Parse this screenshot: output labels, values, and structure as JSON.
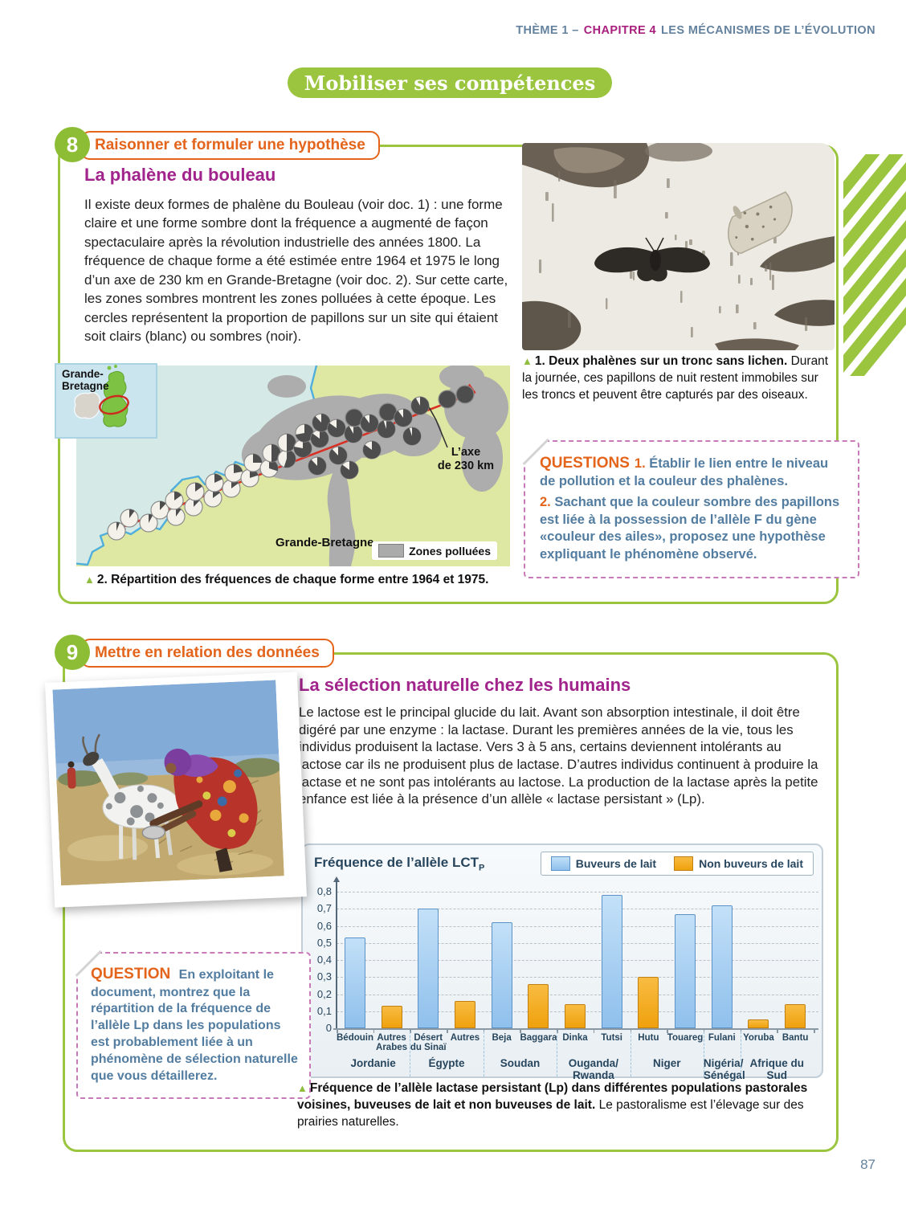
{
  "page": {
    "header": {
      "prefix": "THÈME 1 –",
      "chapter": "CHAPITRE 4",
      "suffix": "LES MÉCANISMES DE L’ÉVOLUTION"
    },
    "banner": "Mobiliser ses compétences",
    "page_number": "87"
  },
  "section8": {
    "number": "8",
    "competence": "Raisonner et formuler une hypothèse",
    "title": "La phalène du bouleau",
    "body": "Il existe deux formes de phalène du Bouleau (voir doc. 1) : une forme claire et une forme sombre dont la fréquence a augmenté de façon spectaculaire après la révolution industrielle des années 1800. La fréquence de chaque forme a été estimée entre 1964 et 1975 le long d’un axe de 230 km en Grande-Bretagne (voir doc. 2). Sur cette carte, les zones sombres montrent les zones polluées à cette époque. Les cercles représentent la proportion de papillons sur un site qui étaient soit clairs (blanc) ou sombres (noir).",
    "photo1_marker": "▲",
    "photo1_caption_bold": "1. Deux phalènes sur un tronc sans lichen.",
    "photo1_caption_rest": " Durant la journée, ces papillons de nuit restent immobiles sur les troncs et peuvent être capturés par des oiseaux.",
    "map": {
      "inset_label": "Grande-\nBretagne",
      "axis_label": "L’axe\nde 230 km",
      "country_label": "Grande-Bretagne",
      "legend": "Zones polluées",
      "markers": [
        [
          50,
          206,
          0.06
        ],
        [
          66,
          190,
          0.1
        ],
        [
          90,
          196,
          0.08
        ],
        [
          104,
          180,
          0.12
        ],
        [
          124,
          188,
          0.1
        ],
        [
          122,
          168,
          0.15
        ],
        [
          146,
          176,
          0.12
        ],
        [
          148,
          157,
          0.15
        ],
        [
          170,
          165,
          0.15
        ],
        [
          172,
          146,
          0.18
        ],
        [
          193,
          153,
          0.15
        ],
        [
          196,
          134,
          0.22
        ],
        [
          216,
          140,
          0.2
        ],
        [
          220,
          121,
          0.25
        ],
        [
          240,
          128,
          0.3
        ],
        [
          243,
          109,
          0.5
        ],
        [
          262,
          116,
          0.55
        ],
        [
          262,
          96,
          0.5
        ],
        [
          282,
          103,
          0.78
        ],
        [
          284,
          84,
          0.72
        ],
        [
          303,
          91,
          0.85
        ],
        [
          305,
          71,
          0.88
        ],
        [
          324,
          78,
          0.85
        ],
        [
          326,
          112,
          0.88
        ],
        [
          345,
          85,
          0.92
        ],
        [
          346,
          65,
          1.0
        ],
        [
          365,
          72,
          0.9
        ],
        [
          368,
          105,
          0.85
        ],
        [
          386,
          79,
          0.95
        ],
        [
          388,
          58,
          1.0
        ],
        [
          407,
          65,
          0.9
        ],
        [
          418,
          88,
          0.95
        ],
        [
          428,
          50,
          0.92
        ],
        [
          300,
          125,
          0.88
        ],
        [
          340,
          130,
          0.85
        ],
        [
          462,
          42,
          1.0
        ],
        [
          484,
          36,
          1.0
        ]
      ]
    },
    "map_marker": "▲",
    "map_caption": "2. Répartition des fréquences de chaque forme entre 1964 et 1975.",
    "questions": {
      "label": "QUESTIONS",
      "items": [
        {
          "num": "1.",
          "text": " Établir le lien entre le niveau de pollution et la couleur des phalènes."
        },
        {
          "num": "2.",
          "text": " Sachant que la couleur sombre des papillons est liée à la possession de l’allèle F du gène «couleur des ailes», proposez une hypothèse expliquant le phénomène observé."
        }
      ]
    }
  },
  "section9": {
    "number": "9",
    "competence": "Mettre en relation des données",
    "title": "La sélection naturelle chez les humains",
    "body": "Le lactose est le principal glucide du lait. Avant son absorption intestinale, il doit être digéré par une enzyme : la lactase. Durant les premières années de la vie, tous les individus produisent la lactase. Vers 3 à 5 ans, certains deviennent intolérants au lactose car ils ne produisent plus de lactase. D’autres individus continuent à produire la lactase et ne sont pas intolérants au lactose. La production de la lactase après la petite enfance est liée à la présence d’un allèle « lactase persistant » (Lp).",
    "question": {
      "label": "QUESTION",
      "text": " En exploitant le document, montrez que la répartition de la fréquence de l’allèle Lp dans les populations est probablement liée à un phénomène de sélection naturelle que vous détaillerez."
    },
    "caption_marker": "▲",
    "caption_bold": "Fréquence de l’allèle lactase persistant (Lp) dans différentes populations pastorales voisines, buveuses de lait et non buveuses de lait.",
    "caption_rest": " Le pastoralisme est l’élevage sur des prairies naturelles."
  },
  "chart_data": {
    "type": "bar",
    "title": "Fréquence de l’allèle LCT",
    "title_sub": "P",
    "legend": [
      {
        "label": "Buveurs de lait",
        "color_top": "#C3E0F8",
        "color_bottom": "#8FC0EC",
        "border": "#5B92C8"
      },
      {
        "label": "Non buveurs de lait",
        "color_top": "#F8BC42",
        "color_bottom": "#EFA10D",
        "border": "#C07F12"
      }
    ],
    "ylim": [
      0,
      0.8
    ],
    "yticks": [
      "0",
      "0,1",
      "0,2",
      "0,3",
      "0,4",
      "0,5",
      "0,6",
      "0,7",
      "0,8"
    ],
    "grid": "dashed",
    "bars": [
      {
        "label": "Bédouin",
        "value": 0.53,
        "series": "milk"
      },
      {
        "label": "Autres\nArabes",
        "value": 0.13,
        "series": "non"
      },
      {
        "label": "Désert\ndu Sinaï",
        "value": 0.7,
        "series": "milk"
      },
      {
        "label": "Autres",
        "value": 0.16,
        "series": "non"
      },
      {
        "label": "Beja",
        "value": 0.62,
        "series": "milk"
      },
      {
        "label": "Baggara",
        "value": 0.26,
        "series": "non"
      },
      {
        "label": "Dinka",
        "value": 0.14,
        "series": "non"
      },
      {
        "label": "Tutsi",
        "value": 0.78,
        "series": "milk"
      },
      {
        "label": "Hutu",
        "value": 0.3,
        "series": "non"
      },
      {
        "label": "Touareg",
        "value": 0.67,
        "series": "milk"
      },
      {
        "label": "Fulani",
        "value": 0.72,
        "series": "milk"
      },
      {
        "label": "Yoruba",
        "value": 0.05,
        "series": "non"
      },
      {
        "label": "Bantu",
        "value": 0.14,
        "series": "non"
      }
    ],
    "groups": [
      {
        "label": "Jordanie",
        "span": 2
      },
      {
        "label": "Égypte",
        "span": 2
      },
      {
        "label": "Soudan",
        "span": 2
      },
      {
        "label": "Ouganda/\nRwanda",
        "span": 2
      },
      {
        "label": "Niger",
        "span": 2
      },
      {
        "label": "Nigéria/\nSénégal",
        "span": 1
      },
      {
        "label": "Afrique du Sud",
        "span": 2
      }
    ]
  }
}
